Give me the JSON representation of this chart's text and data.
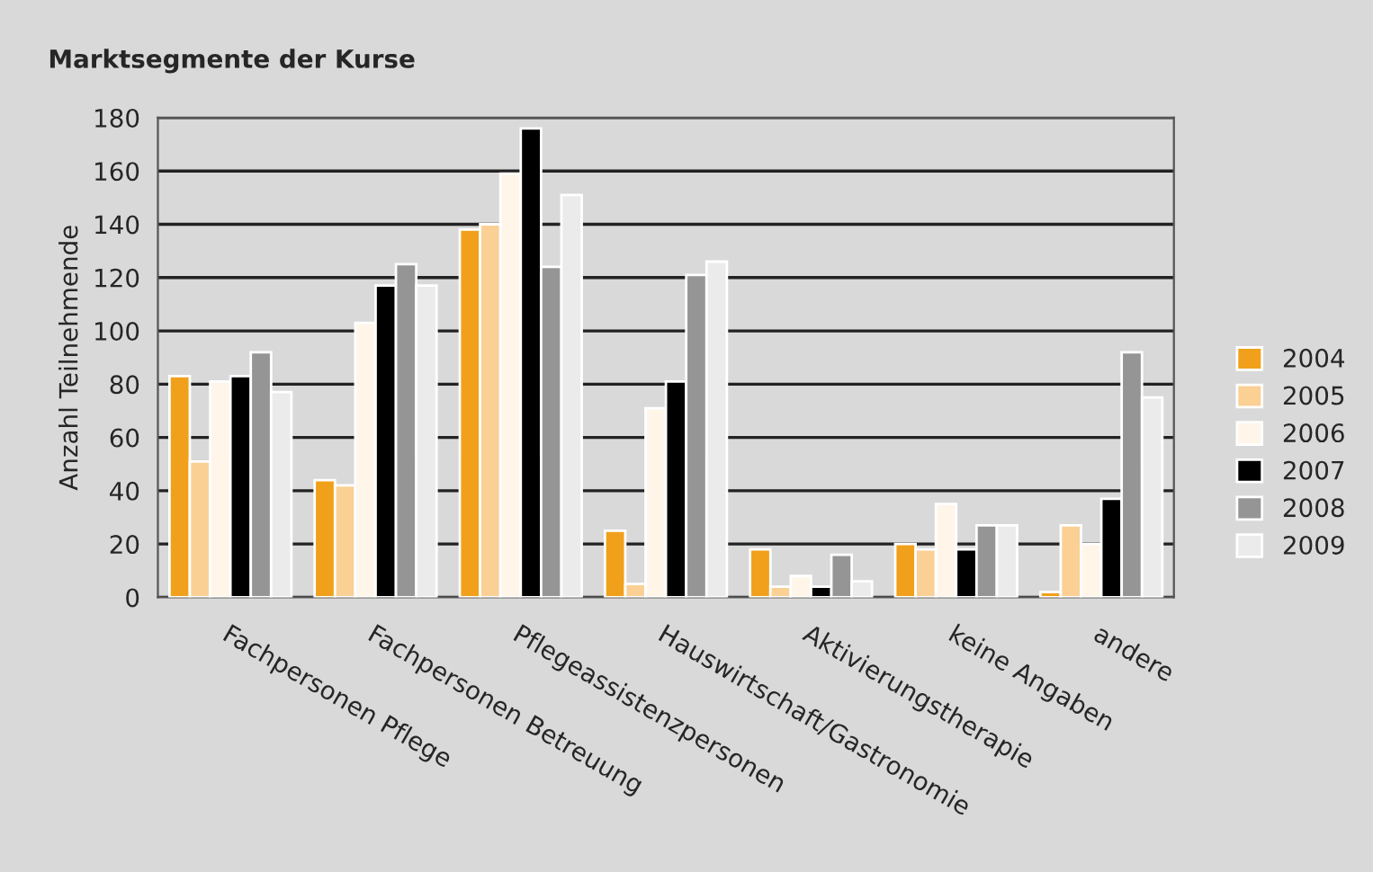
{
  "chart_data": {
    "type": "bar",
    "title": "Marktsegmente der Kurse",
    "ylabel": "Anzahl Teilnehmende",
    "categories": [
      "Fachpersonen Pflege",
      "Fachpersonen Betreuung",
      "Pflegeassistenzpersonen",
      "Hauswirtschaft/Gastronomie",
      "Aktivierungstherapie",
      "keine Angaben",
      "andere"
    ],
    "series": [
      {
        "name": "2004",
        "color": "#f0a01a",
        "values": [
          83,
          44,
          138,
          25,
          18,
          20,
          2
        ]
      },
      {
        "name": "2005",
        "color": "#fad095",
        "values": [
          51,
          42,
          140,
          5,
          4,
          18,
          27
        ]
      },
      {
        "name": "2006",
        "color": "#fff5e9",
        "values": [
          81,
          103,
          159,
          71,
          8,
          35,
          20
        ]
      },
      {
        "name": "2007",
        "color": "#000000",
        "values": [
          83,
          117,
          176,
          81,
          4,
          18,
          37
        ]
      },
      {
        "name": "2008",
        "color": "#959595",
        "values": [
          92,
          125,
          124,
          121,
          16,
          27,
          92
        ]
      },
      {
        "name": "2009",
        "color": "#ebebeb",
        "values": [
          77,
          117,
          151,
          126,
          6,
          27,
          75
        ]
      }
    ],
    "ylim": [
      0,
      180
    ],
    "yticks": [
      0,
      20,
      40,
      60,
      80,
      100,
      120,
      140,
      160,
      180
    ],
    "grid": "y",
    "legend": "right"
  }
}
